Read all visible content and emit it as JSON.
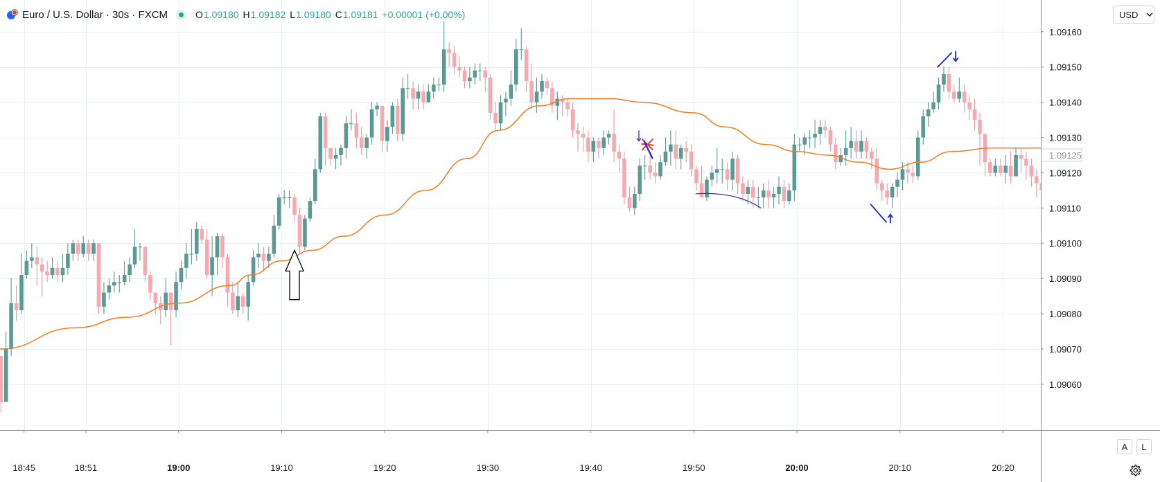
{
  "header": {
    "symbol": "Euro / U.S. Dollar · 30s · FXCM",
    "open_label": "O",
    "open": "1.09180",
    "high_label": "H",
    "high": "1.09182",
    "low_label": "L",
    "low": "1.09180",
    "close_label": "C",
    "close": "1.09181",
    "change": "+0.00001 (+0.00%)"
  },
  "currency_button": "USD",
  "auto_button": "A",
  "log_button": "L",
  "icons": [
    "eur-usd-symbol-icon",
    "live-status-dot-icon",
    "currency-dropdown-icon",
    "settings-gear-icon",
    "up-arrow-drawing-icon",
    "cross-marker-icon"
  ],
  "colors": {
    "up": "#5b9a94",
    "down": "#f7a9b2",
    "ma": "#f57c1f",
    "annotation": "#3030c8",
    "cross": "#e53935",
    "grid": "#e8f0f6"
  },
  "chart_data": {
    "type": "candlestick",
    "symbol": "EURUSD",
    "interval": "30s",
    "ylim": [
      1.09047,
      1.09169
    ],
    "y_ticks": [
      "1.09160",
      "1.09150",
      "1.09140",
      "1.09130",
      "1.09120",
      "1.09110",
      "1.09100",
      "1.09090",
      "1.09080",
      "1.09070",
      "1.09060"
    ],
    "current_price_label": "1.09125",
    "current_price": 1.09125,
    "x_ticks": [
      {
        "t": "18:45:00",
        "label": "18:45",
        "bold": false
      },
      {
        "t": "18:51:00",
        "label": "18:51",
        "bold": false
      },
      {
        "t": "19:00:00",
        "label": "19:00",
        "bold": true
      },
      {
        "t": "19:10:00",
        "label": "19:10",
        "bold": false
      },
      {
        "t": "19:20:00",
        "label": "19:20",
        "bold": false
      },
      {
        "t": "19:30:00",
        "label": "19:30",
        "bold": false
      },
      {
        "t": "19:40:00",
        "label": "19:40",
        "bold": false
      },
      {
        "t": "19:50:00",
        "label": "19:50",
        "bold": false
      },
      {
        "t": "20:00:00",
        "label": "20:00",
        "bold": true
      },
      {
        "t": "20:10:00",
        "label": "20:10",
        "bold": false
      },
      {
        "t": "20:20:00",
        "label": "20:20",
        "bold": false
      }
    ],
    "x_range": [
      "18:42:40",
      "20:23:40"
    ],
    "bar_start": "18:42:30",
    "bar_seconds": 30,
    "close_path": [
      1.09055,
      1.0907,
      1.09083,
      1.09081,
      1.09091,
      1.09095,
      1.09096,
      1.09094,
      1.09092,
      1.09091,
      1.09093,
      1.09091,
      1.09093,
      1.09097,
      1.091,
      1.09097,
      1.091,
      1.09097,
      1.091,
      1.09082,
      1.09086,
      1.09088,
      1.09089,
      1.09089,
      1.09091,
      1.09094,
      1.09099,
      1.09099,
      1.09091,
      1.09086,
      1.09083,
      1.09081,
      1.09086,
      1.09081,
      1.09089,
      1.09093,
      1.09097,
      1.09097,
      1.09104,
      1.09101,
      1.09091,
      1.09096,
      1.09102,
      1.09096,
      1.09086,
      1.09081,
      1.09085,
      1.09082,
      1.09089,
      1.09096,
      1.09097,
      1.09095,
      1.09097,
      1.09105,
      1.09113,
      1.09113,
      1.09113,
      1.09108,
      1.09099,
      1.09107,
      1.09112,
      1.09121,
      1.09136,
      1.09127,
      1.09124,
      1.09125,
      1.09127,
      1.09134,
      1.09134,
      1.0913,
      1.09127,
      1.0913,
      1.09138,
      1.09139,
      1.09129,
      1.09133,
      1.09139,
      1.09131,
      1.09144,
      1.09144,
      1.09141,
      1.09143,
      1.0914,
      1.09143,
      1.09145,
      1.09145,
      1.09155,
      1.09154,
      1.0915,
      1.09149,
      1.09146,
      1.09147,
      1.09149,
      1.09149,
      1.09147,
      1.09137,
      1.09134,
      1.0914,
      1.09141,
      1.09145,
      1.09155,
      1.09155,
      1.09146,
      1.0914,
      1.09143,
      1.09146,
      1.09144,
      1.09139,
      1.09141,
      1.0914,
      1.09138,
      1.09132,
      1.09131,
      1.0913,
      1.09126,
      1.09129,
      1.09127,
      1.0913,
      1.09131,
      1.09126,
      1.09124,
      1.09113,
      1.0911,
      1.09114,
      1.09122,
      1.09122,
      1.0912,
      1.09119,
      1.09123,
      1.09126,
      1.09128,
      1.09124,
      1.09127,
      1.09126,
      1.09121,
      1.09117,
      1.09113,
      1.09118,
      1.0912,
      1.09121,
      1.09121,
      1.09118,
      1.09124,
      1.09117,
      1.09114,
      1.09116,
      1.09113,
      1.09113,
      1.09115,
      1.09113,
      1.09114,
      1.09116,
      1.09112,
      1.09115,
      1.09128,
      1.09128,
      1.0913,
      1.0913,
      1.09131,
      1.09133,
      1.09132,
      1.09128,
      1.09123,
      1.09125,
      1.09127,
      1.09129,
      1.09126,
      1.09129,
      1.09126,
      1.09124,
      1.09117,
      1.09115,
      1.09113,
      1.09116,
      1.09118,
      1.09121,
      1.0912,
      1.09119,
      1.0913,
      1.09136,
      1.09138,
      1.0914,
      1.09145,
      1.09148,
      1.09143,
      1.09141,
      1.09143,
      1.0914,
      1.09138,
      1.09135,
      1.09131,
      1.09123,
      1.0912,
      1.09122,
      1.0912,
      1.09122,
      1.09119,
      1.09125,
      1.09124,
      1.09122,
      1.09119,
      1.09117,
      1.09115,
      1.09114
    ],
    "high_path": [
      1.09068,
      1.09075,
      1.0909,
      1.09088,
      1.09097,
      1.09098,
      1.091,
      1.09099,
      1.09096,
      1.09095,
      1.09096,
      1.09095,
      1.09097,
      1.091,
      1.09101,
      1.09101,
      1.09102,
      1.09101,
      1.09101,
      1.091,
      1.09089,
      1.0909,
      1.09092,
      1.09091,
      1.09095,
      1.09096,
      1.09104,
      1.091,
      1.09099,
      1.09092,
      1.09086,
      1.09085,
      1.0909,
      1.09086,
      1.09092,
      1.09095,
      1.091,
      1.09104,
      1.09106,
      1.09105,
      1.09104,
      1.09102,
      1.09103,
      1.09103,
      1.09097,
      1.09089,
      1.09089,
      1.09086,
      1.09091,
      1.09098,
      1.091,
      1.09099,
      1.09099,
      1.09108,
      1.09114,
      1.09115,
      1.09115,
      1.09114,
      1.0911,
      1.09108,
      1.09113,
      1.09124,
      1.09137,
      1.09137,
      1.09127,
      1.09127,
      1.09128,
      1.09136,
      1.09138,
      1.09137,
      1.09133,
      1.09131,
      1.0914,
      1.0914,
      1.09139,
      1.09135,
      1.0914,
      1.09141,
      1.09147,
      1.09148,
      1.09146,
      1.09145,
      1.09145,
      1.09145,
      1.09147,
      1.09147,
      1.09163,
      1.09157,
      1.09156,
      1.09153,
      1.0915,
      1.0915,
      1.09151,
      1.09151,
      1.0915,
      1.09148,
      1.0914,
      1.09142,
      1.09143,
      1.09149,
      1.09158,
      1.09161,
      1.09156,
      1.09151,
      1.09147,
      1.09148,
      1.09147,
      1.09146,
      1.09143,
      1.09142,
      1.09141,
      1.0914,
      1.09134,
      1.09133,
      1.09132,
      1.0913,
      1.0913,
      1.09132,
      1.09132,
      1.09138,
      1.09128,
      1.09126,
      1.09116,
      1.09116,
      1.09124,
      1.09125,
      1.09126,
      1.09123,
      1.09125,
      1.0913,
      1.09132,
      1.09132,
      1.09128,
      1.09129,
      1.09128,
      1.09122,
      1.09122,
      1.09119,
      1.09122,
      1.09127,
      1.09124,
      1.09123,
      1.09126,
      1.09125,
      1.09119,
      1.09118,
      1.09118,
      1.09116,
      1.09117,
      1.09118,
      1.09116,
      1.09119,
      1.09118,
      1.09117,
      1.09131,
      1.0913,
      1.09131,
      1.09132,
      1.09135,
      1.09135,
      1.09135,
      1.09133,
      1.0913,
      1.09127,
      1.09132,
      1.09133,
      1.09132,
      1.09132,
      1.0913,
      1.09127,
      1.09127,
      1.09118,
      1.09117,
      1.09117,
      1.0912,
      1.09123,
      1.09123,
      1.09122,
      1.09132,
      1.09138,
      1.0914,
      1.09143,
      1.09147,
      1.0915,
      1.0915,
      1.09145,
      1.09147,
      1.09145,
      1.09142,
      1.09141,
      1.09137,
      1.09131,
      1.09124,
      1.09124,
      1.09124,
      1.09125,
      1.09126,
      1.09127,
      1.09127,
      1.09126,
      1.09124,
      1.09121,
      1.09118,
      1.09116
    ],
    "low_path": [
      1.09052,
      1.09055,
      1.09068,
      1.09078,
      1.0908,
      1.0909,
      1.09093,
      1.09088,
      1.09085,
      1.09089,
      1.0909,
      1.09089,
      1.09089,
      1.09091,
      1.09095,
      1.09095,
      1.09096,
      1.09095,
      1.09095,
      1.0908,
      1.0908,
      1.09084,
      1.09086,
      1.09086,
      1.09088,
      1.09089,
      1.09093,
      1.09095,
      1.09089,
      1.09084,
      1.0908,
      1.09077,
      1.09079,
      1.09071,
      1.09079,
      1.09087,
      1.0909,
      1.09094,
      1.09095,
      1.091,
      1.0909,
      1.09085,
      1.09091,
      1.09093,
      1.09082,
      1.0908,
      1.09079,
      1.0908,
      1.09078,
      1.09088,
      1.09093,
      1.09092,
      1.09093,
      1.09096,
      1.09104,
      1.09111,
      1.0911,
      1.09106,
      1.09097,
      1.09098,
      1.09106,
      1.09111,
      1.0912,
      1.09122,
      1.09122,
      1.09121,
      1.09122,
      1.09124,
      1.09132,
      1.09127,
      1.09125,
      1.09124,
      1.09128,
      1.09136,
      1.09126,
      1.09126,
      1.09131,
      1.09129,
      1.09129,
      1.09141,
      1.09138,
      1.09138,
      1.09138,
      1.0914,
      1.09141,
      1.09143,
      1.09143,
      1.0915,
      1.09148,
      1.09147,
      1.09144,
      1.09144,
      1.09145,
      1.09146,
      1.09143,
      1.09135,
      1.09132,
      1.09132,
      1.09136,
      1.09139,
      1.09143,
      1.09152,
      1.09143,
      1.09138,
      1.09137,
      1.09141,
      1.09142,
      1.09137,
      1.09135,
      1.09136,
      1.09136,
      1.0913,
      1.09126,
      1.09126,
      1.09123,
      1.09123,
      1.09124,
      1.09125,
      1.09128,
      1.09123,
      1.0912,
      1.09111,
      1.09109,
      1.09108,
      1.09112,
      1.09118,
      1.09118,
      1.09117,
      1.09118,
      1.09122,
      1.09122,
      1.09121,
      1.09121,
      1.09123,
      1.09119,
      1.09115,
      1.09113,
      1.09112,
      1.09116,
      1.09117,
      1.09117,
      1.09115,
      1.09115,
      1.09114,
      1.09112,
      1.09111,
      1.0911,
      1.0911,
      1.0911,
      1.0911,
      1.0911,
      1.09111,
      1.0911,
      1.09111,
      1.09112,
      1.09126,
      1.09125,
      1.09127,
      1.09127,
      1.09128,
      1.0913,
      1.09126,
      1.09121,
      1.09122,
      1.09122,
      1.09124,
      1.09124,
      1.09124,
      1.09124,
      1.09121,
      1.09115,
      1.09112,
      1.09111,
      1.0911,
      1.09113,
      1.09115,
      1.09117,
      1.09117,
      1.09118,
      1.09128,
      1.09133,
      1.09137,
      1.09138,
      1.09143,
      1.09141,
      1.0914,
      1.0914,
      1.09137,
      1.09135,
      1.09132,
      1.09122,
      1.09119,
      1.09119,
      1.09119,
      1.09119,
      1.09117,
      1.09117,
      1.09121,
      1.0912,
      1.09118,
      1.09116,
      1.09113,
      1.09113,
      1.09112
    ],
    "moving_average": {
      "color": "#f57c1f",
      "points": [
        [
          "18:42:40",
          1.0907
        ],
        [
          "18:50:00",
          1.09076
        ],
        [
          "18:55:00",
          1.09079
        ],
        [
          "19:00:00",
          1.09083
        ],
        [
          "19:05:00",
          1.09088
        ],
        [
          "19:07:00",
          1.09091
        ],
        [
          "19:10:00",
          1.09095
        ],
        [
          "19:13:00",
          1.09098
        ],
        [
          "19:16:00",
          1.09102
        ],
        [
          "19:20:00",
          1.09108
        ],
        [
          "19:24:00",
          1.09115
        ],
        [
          "19:28:00",
          1.09124
        ],
        [
          "19:31:00",
          1.09132
        ],
        [
          "19:35:00",
          1.09139
        ],
        [
          "19:38:00",
          1.09141
        ],
        [
          "19:42:00",
          1.09141
        ],
        [
          "19:45:00",
          1.0914
        ],
        [
          "19:50:00",
          1.09137
        ],
        [
          "19:53:00",
          1.09133
        ],
        [
          "19:57:00",
          1.09128
        ],
        [
          "20:00:00",
          1.09126
        ],
        [
          "20:03:00",
          1.09125
        ],
        [
          "20:06:00",
          1.09123
        ],
        [
          "20:09:00",
          1.09121
        ],
        [
          "20:12:00",
          1.09123
        ],
        [
          "20:15:00",
          1.09126
        ],
        [
          "20:19:00",
          1.09127
        ],
        [
          "20:23:40",
          1.09127
        ]
      ]
    },
    "annotations": [
      {
        "kind": "hollow-up-arrow",
        "t": "19:11:15",
        "tip_price": 1.09098,
        "base_price": 1.09084,
        "color": "#000000"
      },
      {
        "kind": "small-down-arrow",
        "t": "19:44:40",
        "price_top": 1.09132,
        "price_bottom": 1.09129,
        "color": "#3030c8"
      },
      {
        "kind": "cross",
        "t": "19:45:30",
        "price": 1.09128,
        "color": "#e53935"
      },
      {
        "kind": "trend-stroke",
        "from": [
          "19:45:10",
          1.09129
        ],
        "to": [
          "19:46:00",
          1.09124
        ],
        "color": "#3030c8"
      },
      {
        "kind": "curve",
        "from": [
          "19:50:10",
          1.09114
        ],
        "to": [
          "19:56:30",
          1.0911
        ],
        "color": "#3030c8"
      },
      {
        "kind": "angled-up-arrow",
        "from": [
          "20:07:10",
          1.09111
        ],
        "to": [
          "20:08:40",
          1.09106
        ],
        "color": "#3030c8"
      },
      {
        "kind": "angled-down-arrow",
        "from": [
          "20:13:40",
          1.0915
        ],
        "to": [
          "20:15:00",
          1.09154
        ],
        "color": "#3030c8"
      }
    ]
  }
}
